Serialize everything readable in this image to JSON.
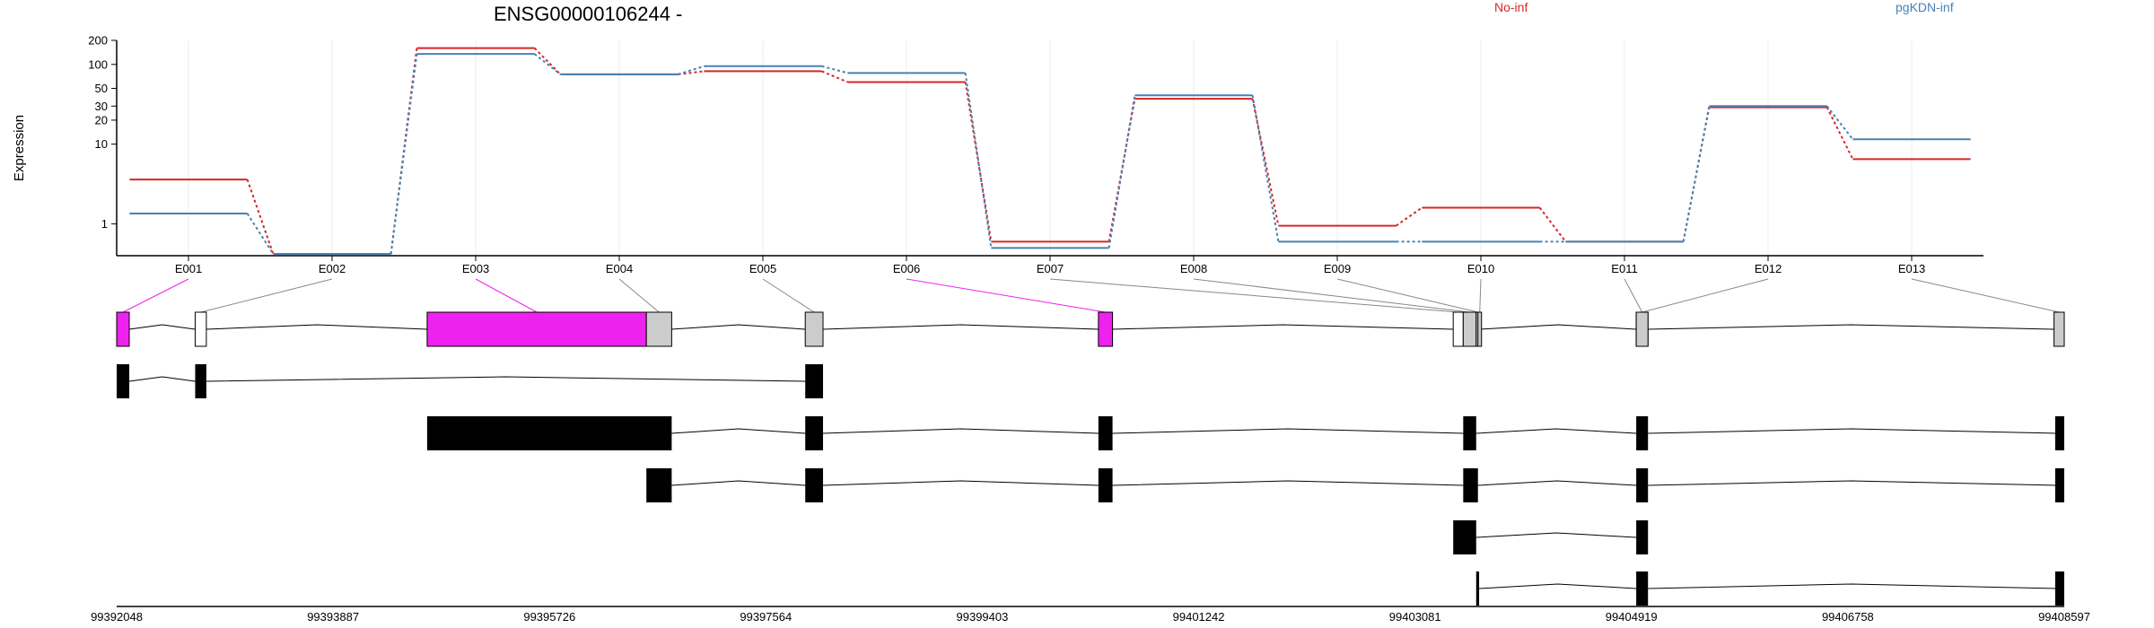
{
  "chart_data": {
    "type": "line",
    "title": "ENSG00000106244 -",
    "ylabel": "Expression",
    "yscale": "log",
    "ylim": [
      0.4,
      200
    ],
    "yticks": [
      "1",
      "10",
      "20",
      "30",
      "50",
      "100",
      "200"
    ],
    "categories": [
      "E001",
      "E002",
      "E003",
      "E004",
      "E005",
      "E006",
      "E007",
      "E008",
      "E009",
      "E010",
      "E011",
      "E012",
      "E013"
    ],
    "series": [
      {
        "name": "No-inf",
        "color": "#d62728",
        "values": [
          3.6,
          0.42,
          160,
          75,
          82,
          60,
          0.6,
          37,
          0.95,
          1.6,
          0.6,
          29,
          6.5
        ]
      },
      {
        "name": "pgKDN-inf",
        "color": "#4682b4",
        "values": [
          1.35,
          0.42,
          135,
          75,
          95,
          78,
          0.5,
          41,
          0.6,
          0.6,
          0.6,
          30,
          11.5
        ]
      }
    ],
    "coordinate_ticks": [
      "99392048",
      "99393887",
      "99395726",
      "99397564",
      "99399403",
      "99401242",
      "99403081",
      "99404919",
      "99406758",
      "99408597"
    ],
    "gene_model": {
      "highlight_color": "#ee22ee",
      "exons": [
        {
          "id": "E001",
          "start": 99392048,
          "end": 99392155,
          "highlight": true
        },
        {
          "id": "E002",
          "start": 99392715,
          "end": 99392810,
          "highlight": false,
          "fill": "#ffffff"
        },
        {
          "id": "E003",
          "start": 99394686,
          "end": 99396549,
          "highlight": true
        },
        {
          "id": "E004",
          "start": 99396549,
          "end": 99396764,
          "highlight": false
        },
        {
          "id": "E005",
          "start": 99397899,
          "end": 99398050,
          "highlight": false
        },
        {
          "id": "E006",
          "start": 99400390,
          "end": 99400510,
          "highlight": true
        },
        {
          "id": "E007",
          "start": 99403405,
          "end": 99403490,
          "highlight": false,
          "fill": "#ffffff"
        },
        {
          "id": "E008",
          "start": 99403490,
          "end": 99403600,
          "highlight": false
        },
        {
          "id": "E009",
          "start": 99403600,
          "end": 99403615,
          "highlight": false
        },
        {
          "id": "E010",
          "start": 99403615,
          "end": 99403630,
          "highlight": false
        },
        {
          "id": "E011",
          "start": 99404960,
          "end": 99405060,
          "highlight": false
        },
        {
          "id": "E012",
          "start": 99404960,
          "end": 99405060,
          "highlight": false
        },
        {
          "id": "E013",
          "start": 99408510,
          "end": 99408597,
          "highlight": false
        }
      ],
      "transcripts": [
        [
          [
            99392048,
            99392155
          ],
          [
            99392715,
            99392810
          ],
          [
            99397899,
            99398050
          ]
        ],
        [
          [
            99394686,
            99396764
          ],
          [
            99397899,
            99398050
          ],
          [
            99400390,
            99400510
          ],
          [
            99403490,
            99403600
          ],
          [
            99404960,
            99405060
          ],
          [
            99408520,
            99408597
          ]
        ],
        [
          [
            99396549,
            99396764
          ],
          [
            99397899,
            99398050
          ],
          [
            99400390,
            99400510
          ],
          [
            99403490,
            99403615
          ],
          [
            99404960,
            99405060
          ],
          [
            99408520,
            99408597
          ]
        ],
        [
          [
            99403405,
            99403600
          ],
          [
            99404960,
            99405060
          ]
        ],
        [
          [
            99403600,
            99403625
          ],
          [
            99404960,
            99405060
          ],
          [
            99408520,
            99408597
          ]
        ]
      ]
    }
  }
}
